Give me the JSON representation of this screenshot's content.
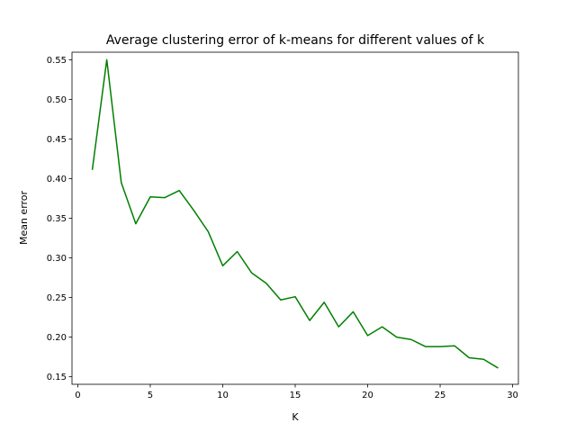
{
  "chart_data": {
    "type": "line",
    "title": "Average clustering error of k-means for different values of k",
    "xlabel": "K",
    "ylabel": "Mean error",
    "xlim": [
      -0.4,
      30.4
    ],
    "ylim": [
      0.1405,
      0.5595
    ],
    "xticks": [
      0,
      5,
      10,
      15,
      20,
      25,
      30
    ],
    "xtick_labels": [
      "0",
      "5",
      "10",
      "15",
      "20",
      "25",
      "30"
    ],
    "yticks": [
      0.15,
      0.2,
      0.25,
      0.3,
      0.35,
      0.4,
      0.45,
      0.5,
      0.55
    ],
    "ytick_labels": [
      "0.15",
      "0.20",
      "0.25",
      "0.30",
      "0.35",
      "0.40",
      "0.45",
      "0.50",
      "0.55"
    ],
    "grid": false,
    "legend": "none",
    "series": [
      {
        "color": "#008000",
        "x": [
          1,
          2,
          3,
          4,
          5,
          6,
          7,
          8,
          9,
          10,
          11,
          12,
          13,
          14,
          15,
          16,
          17,
          18,
          19,
          20,
          21,
          22,
          23,
          24,
          25,
          26,
          27,
          28,
          29
        ],
        "values": [
          0.411,
          0.55,
          0.395,
          0.343,
          0.377,
          0.376,
          0.385,
          0.36,
          0.333,
          0.29,
          0.308,
          0.281,
          0.268,
          0.247,
          0.251,
          0.221,
          0.244,
          0.213,
          0.232,
          0.202,
          0.213,
          0.2,
          0.197,
          0.188,
          0.188,
          0.189,
          0.174,
          0.172,
          0.161
        ]
      }
    ]
  }
}
